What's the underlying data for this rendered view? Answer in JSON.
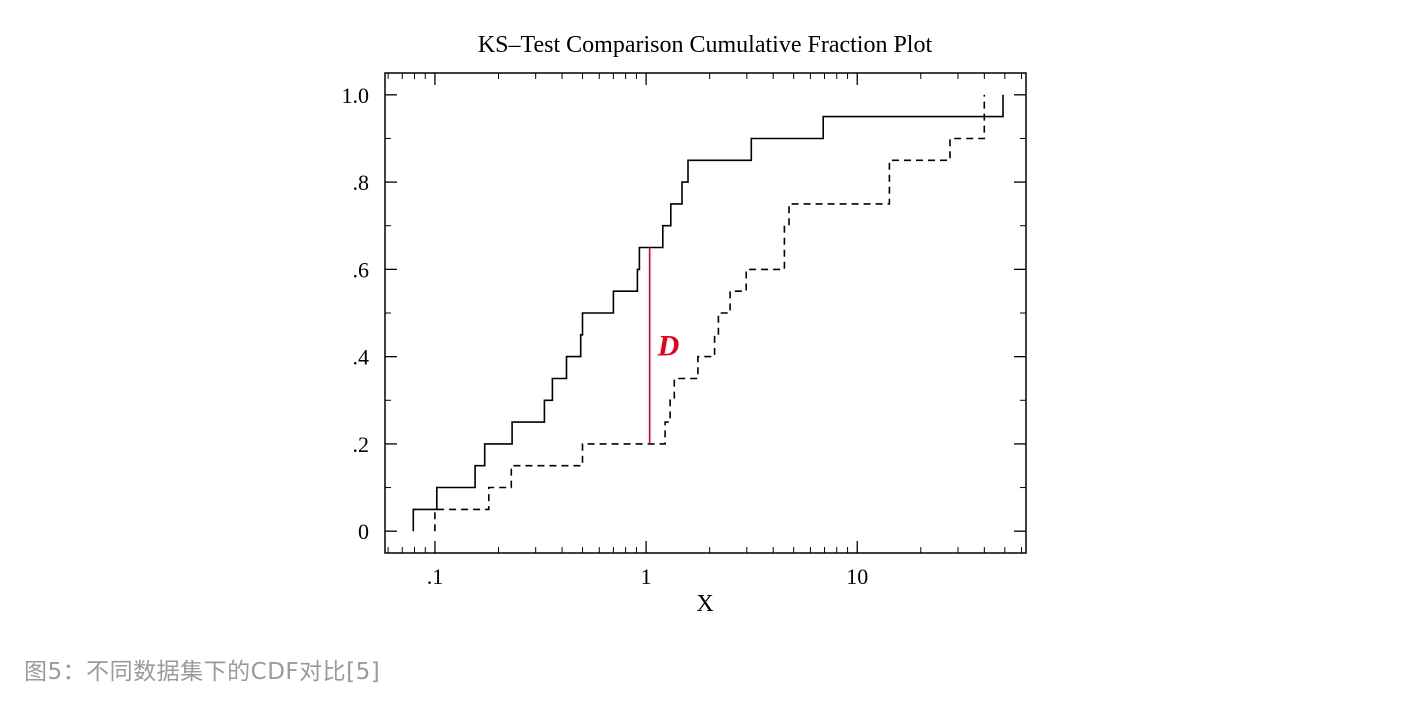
{
  "chart_data": {
    "type": "line",
    "title": "KS–Test Comparison Cumulative Fraction Plot",
    "xlabel": "X",
    "ylabel": "",
    "xscale": "log",
    "xlim": [
      0.058,
      63
    ],
    "ylim": [
      -0.05,
      1.05
    ],
    "xticks": [
      {
        "value": 0.1,
        "label": ".1"
      },
      {
        "value": 1,
        "label": "1"
      },
      {
        "value": 10,
        "label": "10"
      }
    ],
    "yticks": [
      {
        "value": 0,
        "label": "0"
      },
      {
        "value": 0.2,
        "label": ".2"
      },
      {
        "value": 0.4,
        "label": ".4"
      },
      {
        "value": 0.6,
        "label": ".6"
      },
      {
        "value": 0.8,
        "label": ".8"
      },
      {
        "value": 1.0,
        "label": "1.0"
      }
    ],
    "series": [
      {
        "style": "solid",
        "color": "#000000",
        "steps_x": [
          0.079,
          0.102,
          0.155,
          0.172,
          0.232,
          0.33,
          0.36,
          0.42,
          0.49,
          0.5,
          0.7,
          0.91,
          0.93,
          1.2,
          1.31,
          1.48,
          1.58,
          1.75,
          3.15,
          6.9,
          49
        ],
        "steps_y": [
          0.05,
          0.1,
          0.15,
          0.2,
          0.25,
          0.3,
          0.35,
          0.4,
          0.45,
          0.5,
          0.55,
          0.6,
          0.65,
          0.7,
          0.75,
          0.8,
          0.85,
          0.85,
          0.9,
          0.95,
          1.0
        ]
      },
      {
        "style": "dashed",
        "color": "#000000",
        "steps_x": [
          0.1,
          0.18,
          0.23,
          0.5,
          1.23,
          1.3,
          1.36,
          1.76,
          2.11,
          2.2,
          2.5,
          2.98,
          4.52,
          4.75,
          14.2,
          27.5,
          40
        ],
        "steps_y": [
          0.05,
          0.1,
          0.15,
          0.2,
          0.25,
          0.3,
          0.35,
          0.4,
          0.45,
          0.5,
          0.55,
          0.6,
          0.7,
          0.75,
          0.85,
          0.9,
          1.0
        ]
      }
    ],
    "annotations": [
      {
        "label": "D",
        "x": 1.04,
        "y_from": 0.2,
        "y_to": 0.65,
        "color": "#e8001c"
      }
    ],
    "grid": false,
    "legend": "none"
  },
  "caption": "图5：不同数据集下的CDF对比[5]"
}
